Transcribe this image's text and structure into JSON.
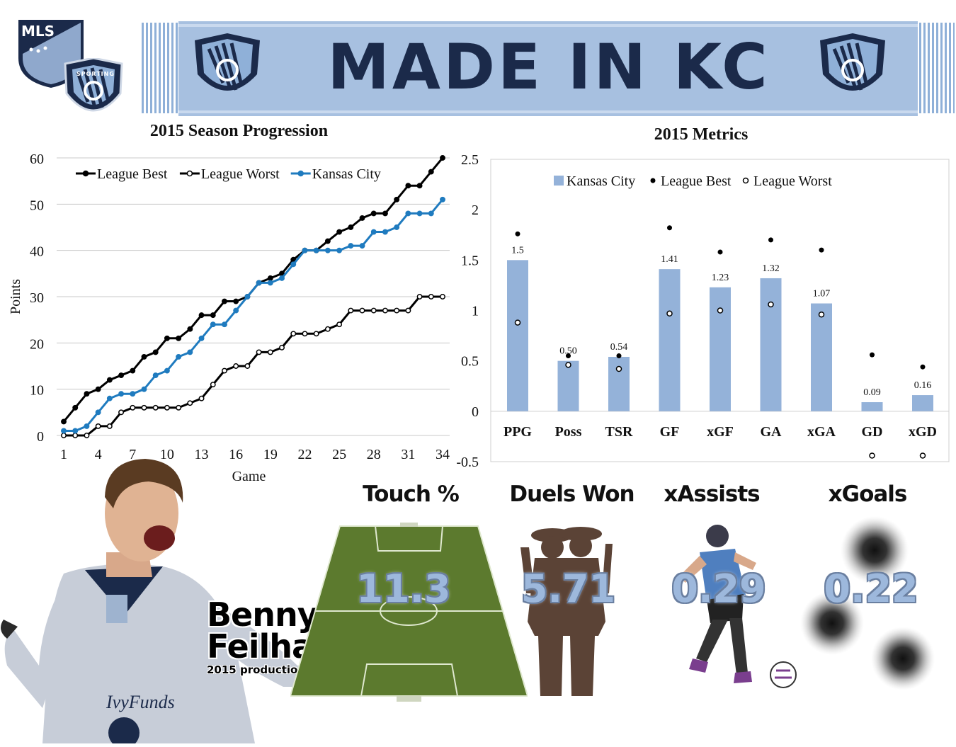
{
  "banner": {
    "title": "MADE IN KC"
  },
  "logos": {
    "mls_text": "MLS",
    "sporting_text": "SPORTING"
  },
  "progression_chart": {
    "title": "2015 Season Progression",
    "chart_data": {
      "type": "line",
      "title": "2015 Season Progression",
      "xlabel": "Game",
      "ylabel": "Points",
      "xlim": [
        1,
        34
      ],
      "ylim": [
        0,
        60
      ],
      "x_ticks": [
        "1",
        "4",
        "7",
        "10",
        "13",
        "16",
        "19",
        "22",
        "25",
        "28",
        "31",
        "34"
      ],
      "y_ticks": [
        "0",
        "10",
        "20",
        "30",
        "40",
        "50",
        "60"
      ],
      "grid": true,
      "legend": "top-left",
      "series": [
        {
          "name": "League Best",
          "color": "#000000",
          "marker": "filled",
          "values": [
            3,
            6,
            9,
            10,
            12,
            13,
            14,
            17,
            18,
            21,
            21,
            23,
            26,
            26,
            29,
            29,
            30,
            33,
            34,
            35,
            38,
            40,
            40,
            42,
            44,
            45,
            47,
            48,
            48,
            51,
            54,
            54,
            57,
            60
          ]
        },
        {
          "name": "League Worst",
          "color": "#000000",
          "marker": "hollow",
          "values": [
            0,
            0,
            0,
            2,
            2,
            5,
            6,
            6,
            6,
            6,
            6,
            7,
            8,
            11,
            14,
            15,
            15,
            18,
            18,
            19,
            22,
            22,
            22,
            23,
            24,
            27,
            27,
            27,
            27,
            27,
            27,
            30,
            30,
            30
          ]
        },
        {
          "name": "Kansas City",
          "color": "#1f7bbf",
          "marker": "filled",
          "values": [
            1,
            1,
            2,
            5,
            8,
            9,
            9,
            10,
            13,
            14,
            17,
            18,
            21,
            24,
            24,
            27,
            30,
            33,
            33,
            34,
            37,
            40,
            40,
            40,
            40,
            41,
            41,
            44,
            44,
            45,
            48,
            48,
            48,
            51
          ]
        }
      ]
    }
  },
  "metrics_chart": {
    "title": "2015 Metrics",
    "chart_data": {
      "type": "bar",
      "title": "2015 Metrics",
      "categories": [
        "PPG",
        "Poss",
        "TSR",
        "GF",
        "xGF",
        "GA",
        "xGA",
        "GD",
        "xGD"
      ],
      "ylim": [
        -0.5,
        2.5
      ],
      "y_ticks": [
        "-0.5",
        "0",
        "0.5",
        "1",
        "1.5",
        "2",
        "2.5"
      ],
      "legend": "top",
      "bar_color": "#94b2d9",
      "series": [
        {
          "name": "Kansas City",
          "kind": "bar",
          "values": [
            1.5,
            0.5,
            0.54,
            1.41,
            1.23,
            1.32,
            1.07,
            0.09,
            0.16
          ]
        },
        {
          "name": "League Best",
          "kind": "marker-filled",
          "values": [
            1.76,
            0.55,
            0.55,
            1.82,
            1.58,
            1.7,
            1.6,
            0.56,
            0.44
          ]
        },
        {
          "name": "League Worst",
          "kind": "marker-hollow",
          "values": [
            0.88,
            0.46,
            0.42,
            0.97,
            1.0,
            1.06,
            0.96,
            -0.44,
            -0.44
          ]
        }
      ],
      "data_labels": [
        "1.5",
        "0.50",
        "0.54",
        "1.41",
        "1.23",
        "1.32",
        "1.07",
        "0.09",
        "0.16"
      ]
    }
  },
  "player": {
    "first_name": "Benny",
    "last_name": "Feilhaber",
    "subtitle": "2015 production per 90 mins"
  },
  "stats": [
    {
      "id": "touch",
      "title": "Touch %",
      "value": "11.3"
    },
    {
      "id": "duels",
      "title": "Duels Won",
      "value": "5.71"
    },
    {
      "id": "xassists",
      "title": "xAssists",
      "value": "0.29"
    },
    {
      "id": "xgoals",
      "title": "xGoals",
      "value": "0.22"
    }
  ],
  "colors": {
    "navy": "#1b2a4a",
    "scarf_blue": "#9db8dc",
    "kc_blue": "#1f7bbf",
    "bar_blue": "#94b2d9",
    "pitch_green": "#5c7a2e"
  }
}
